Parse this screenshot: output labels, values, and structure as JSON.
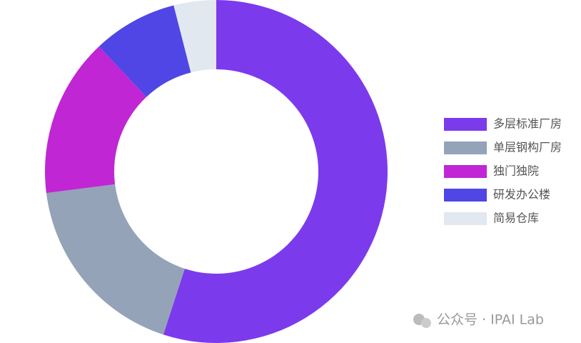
{
  "chart_data": {
    "type": "pie",
    "categories": [
      "多层标准厂房",
      "单层钢构厂房",
      "独门独院",
      "研发办公楼",
      "简易仓库"
    ],
    "values": [
      55,
      18,
      15,
      8,
      4
    ],
    "colors": [
      "#7c3aed",
      "#94a3b8",
      "#c026d3",
      "#4f46e5",
      "#e2e8f0"
    ],
    "legend": "right"
  },
  "watermark": "公众号 · IPAI Lab"
}
